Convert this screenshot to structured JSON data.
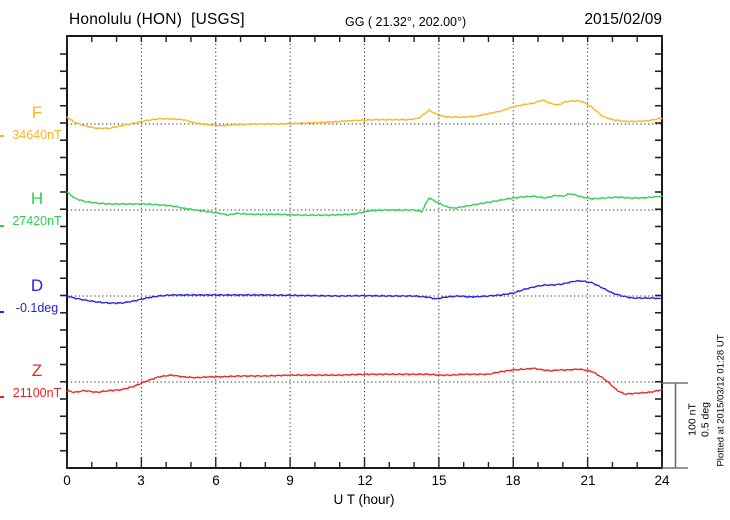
{
  "header": {
    "station": "Honolulu (HON)  [USGS]",
    "geographic": "GG ( 21.32°, 202.00°)",
    "date": "2015/02/09"
  },
  "axis": {
    "xlabel": "U T (hour)"
  },
  "scale_bar": {
    "line1": "100 nT",
    "line2": "0.5 deg"
  },
  "plotted_at": "Plotted at 2015/03/12 01:28 UT",
  "chart_data": {
    "type": "line",
    "xlabel": "U T (hour)",
    "xlim": [
      0,
      24
    ],
    "x_tick_labels": [
      "0",
      "3",
      "6",
      "9",
      "12",
      "15",
      "18",
      "21",
      "24"
    ],
    "grid": "dotted vertical lines every 3 hours; dotted horizontal baseline per trace",
    "legend_position": "left margin (component letter + baseline value)",
    "scale_reference": {
      "nT_per_bar": "100 nT",
      "deg_per_bar": "0.5 deg"
    },
    "series": [
      {
        "id": "F",
        "label": "F",
        "baseline_label": "34640nT",
        "baseline_value": 34640,
        "unit": "nT",
        "color": "#FAB41E",
        "points": [
          [
            0,
            34648
          ],
          [
            0.3,
            34642
          ],
          [
            0.7,
            34638
          ],
          [
            1.2,
            34635
          ],
          [
            1.7,
            34635
          ],
          [
            2.2,
            34638
          ],
          [
            2.7,
            34641
          ],
          [
            3.2,
            34644
          ],
          [
            3.7,
            34646
          ],
          [
            4.2,
            34646
          ],
          [
            4.7,
            34645
          ],
          [
            5.2,
            34641
          ],
          [
            5.7,
            34639
          ],
          [
            6.2,
            34638
          ],
          [
            6.7,
            34639
          ],
          [
            7.5,
            34640
          ],
          [
            8.5,
            34640
          ],
          [
            9.5,
            34641
          ],
          [
            10.5,
            34642
          ],
          [
            11.5,
            34644
          ],
          [
            12.5,
            34645
          ],
          [
            13.2,
            34645
          ],
          [
            13.8,
            34645
          ],
          [
            14.2,
            34647
          ],
          [
            14.6,
            34656
          ],
          [
            15,
            34650
          ],
          [
            15.4,
            34648
          ],
          [
            16,
            34648
          ],
          [
            16.5,
            34649
          ],
          [
            17,
            34652
          ],
          [
            17.5,
            34655
          ],
          [
            18,
            34660
          ],
          [
            18.5,
            34663
          ],
          [
            18.8,
            34664
          ],
          [
            19.2,
            34668
          ],
          [
            19.5,
            34664
          ],
          [
            19.8,
            34662
          ],
          [
            20.1,
            34666
          ],
          [
            20.5,
            34667
          ],
          [
            20.8,
            34666
          ],
          [
            21.2,
            34659
          ],
          [
            21.6,
            34649
          ],
          [
            22,
            34645
          ],
          [
            22.5,
            34643
          ],
          [
            23,
            34643
          ],
          [
            23.5,
            34644
          ],
          [
            24,
            34647
          ]
        ]
      },
      {
        "id": "H",
        "label": "H",
        "baseline_label": "27420nT",
        "baseline_value": 27420,
        "unit": "nT",
        "color": "#2FCE52",
        "points": [
          [
            0,
            27441
          ],
          [
            0.3,
            27434
          ],
          [
            0.7,
            27430
          ],
          [
            1.2,
            27428
          ],
          [
            1.7,
            27427
          ],
          [
            2.2,
            27427
          ],
          [
            2.7,
            27427
          ],
          [
            3.2,
            27427
          ],
          [
            3.7,
            27426
          ],
          [
            4.2,
            27425
          ],
          [
            4.7,
            27422
          ],
          [
            5.2,
            27420
          ],
          [
            5.7,
            27418
          ],
          [
            6.2,
            27416
          ],
          [
            6.5,
            27414
          ],
          [
            6.8,
            27416
          ],
          [
            7.5,
            27415
          ],
          [
            8.5,
            27415
          ],
          [
            9.5,
            27414
          ],
          [
            10.5,
            27414
          ],
          [
            11.5,
            27415
          ],
          [
            12.2,
            27419
          ],
          [
            12.7,
            27420
          ],
          [
            13.5,
            27420
          ],
          [
            14,
            27420
          ],
          [
            14.3,
            27418
          ],
          [
            14.6,
            27434
          ],
          [
            15,
            27428
          ],
          [
            15.3,
            27424
          ],
          [
            15.6,
            27422
          ],
          [
            16.2,
            27425
          ],
          [
            17,
            27429
          ],
          [
            17.8,
            27433
          ],
          [
            18.3,
            27435
          ],
          [
            18.8,
            27436
          ],
          [
            19.3,
            27434
          ],
          [
            19.7,
            27437
          ],
          [
            20,
            27436
          ],
          [
            20.3,
            27439
          ],
          [
            20.8,
            27435
          ],
          [
            21.2,
            27433
          ],
          [
            21.7,
            27434
          ],
          [
            22.2,
            27435
          ],
          [
            22.7,
            27434
          ],
          [
            23.2,
            27434
          ],
          [
            23.6,
            27435
          ],
          [
            24,
            27436
          ]
        ]
      },
      {
        "id": "D",
        "label": "D",
        "baseline_label": "-0.1deg",
        "baseline_value": -0.1,
        "unit": "deg",
        "color": "#2222DD",
        "points": [
          [
            0,
            -0.1
          ],
          [
            0.3,
            -0.112
          ],
          [
            0.7,
            -0.123
          ],
          [
            1.2,
            -0.135
          ],
          [
            1.7,
            -0.141
          ],
          [
            2.2,
            -0.141
          ],
          [
            2.7,
            -0.129
          ],
          [
            3.2,
            -0.112
          ],
          [
            3.7,
            -0.1
          ],
          [
            4.2,
            -0.094
          ],
          [
            5,
            -0.094
          ],
          [
            6,
            -0.094
          ],
          [
            7,
            -0.094
          ],
          [
            8,
            -0.094
          ],
          [
            9,
            -0.096
          ],
          [
            10,
            -0.098
          ],
          [
            11,
            -0.1
          ],
          [
            12,
            -0.098
          ],
          [
            13,
            -0.1
          ],
          [
            14,
            -0.1
          ],
          [
            14.5,
            -0.106
          ],
          [
            14.9,
            -0.117
          ],
          [
            15.3,
            -0.106
          ],
          [
            15.8,
            -0.1
          ],
          [
            16.3,
            -0.106
          ],
          [
            17,
            -0.1
          ],
          [
            17.5,
            -0.094
          ],
          [
            18,
            -0.083
          ],
          [
            18.5,
            -0.059
          ],
          [
            19,
            -0.042
          ],
          [
            19.3,
            -0.036
          ],
          [
            19.6,
            -0.036
          ],
          [
            20,
            -0.03
          ],
          [
            20.5,
            -0.013
          ],
          [
            20.8,
            -0.013
          ],
          [
            21.2,
            -0.024
          ],
          [
            21.6,
            -0.053
          ],
          [
            22,
            -0.083
          ],
          [
            22.4,
            -0.1
          ],
          [
            22.8,
            -0.112
          ],
          [
            23.3,
            -0.112
          ],
          [
            23.7,
            -0.112
          ],
          [
            24,
            -0.117
          ]
        ]
      },
      {
        "id": "Z",
        "label": "Z",
        "baseline_label": "21100nT",
        "baseline_value": 21100,
        "unit": "nT",
        "color": "#EE2222",
        "points": [
          [
            0,
            21090
          ],
          [
            0.3,
            21088
          ],
          [
            0.7,
            21090
          ],
          [
            1.2,
            21088
          ],
          [
            1.7,
            21090
          ],
          [
            2.2,
            21091
          ],
          [
            2.7,
            21095
          ],
          [
            3.2,
            21101
          ],
          [
            3.7,
            21106
          ],
          [
            4.2,
            21108
          ],
          [
            4.7,
            21106
          ],
          [
            5.2,
            21105
          ],
          [
            5.7,
            21106
          ],
          [
            6.2,
            21106
          ],
          [
            7,
            21107
          ],
          [
            8,
            21107
          ],
          [
            9,
            21108
          ],
          [
            10,
            21108
          ],
          [
            11,
            21108
          ],
          [
            12,
            21109
          ],
          [
            13,
            21109
          ],
          [
            14,
            21109
          ],
          [
            14.6,
            21109
          ],
          [
            15,
            21108
          ],
          [
            15.5,
            21108
          ],
          [
            16,
            21109
          ],
          [
            16.5,
            21109
          ],
          [
            17,
            21109
          ],
          [
            17.5,
            21112
          ],
          [
            18,
            21114
          ],
          [
            18.5,
            21115
          ],
          [
            18.8,
            21116
          ],
          [
            19.2,
            21114
          ],
          [
            19.5,
            21113
          ],
          [
            19.8,
            21114
          ],
          [
            20.2,
            21114
          ],
          [
            20.6,
            21115
          ],
          [
            20.9,
            21114
          ],
          [
            21.2,
            21112
          ],
          [
            21.6,
            21105
          ],
          [
            21.9,
            21098
          ],
          [
            22.2,
            21090
          ],
          [
            22.5,
            21086
          ],
          [
            23,
            21087
          ],
          [
            23.5,
            21088
          ],
          [
            24,
            21091
          ]
        ]
      }
    ]
  }
}
